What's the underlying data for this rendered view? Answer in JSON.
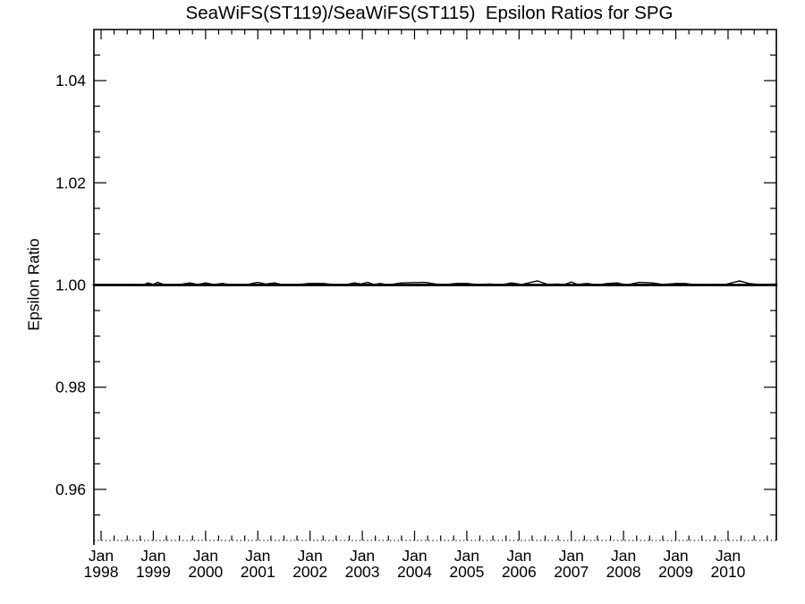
{
  "header": {
    "title": "SeaWiFS(ST119)/SeaWiFS(ST115)  Epsilon Ratios for SPG"
  },
  "chart_data": {
    "type": "line",
    "title": "SeaWiFS(ST119)/SeaWiFS(ST115)  Epsilon Ratios for SPG",
    "xlabel": "",
    "ylabel": "Epsilon Ratio",
    "xlim": [
      1997.863,
      2010.925
    ],
    "ylim": [
      0.95,
      1.05
    ],
    "grid": false,
    "legend": null,
    "line_color": "#000000",
    "background_color": "#ffffff",
    "x_minor_step_years": 0.25,
    "y_minor_step": 0.005,
    "xticks": [
      {
        "x": 1998,
        "line1": "Jan",
        "line2": "1998"
      },
      {
        "x": 1999,
        "line1": "Jan",
        "line2": "1999"
      },
      {
        "x": 2000,
        "line1": "Jan",
        "line2": "2000"
      },
      {
        "x": 2001,
        "line1": "Jan",
        "line2": "2001"
      },
      {
        "x": 2002,
        "line1": "Jan",
        "line2": "2002"
      },
      {
        "x": 2003,
        "line1": "Jan",
        "line2": "2003"
      },
      {
        "x": 2004,
        "line1": "Jan",
        "line2": "2004"
      },
      {
        "x": 2005,
        "line1": "Jan",
        "line2": "2005"
      },
      {
        "x": 2006,
        "line1": "Jan",
        "line2": "2006"
      },
      {
        "x": 2007,
        "line1": "Jan",
        "line2": "2007"
      },
      {
        "x": 2008,
        "line1": "Jan",
        "line2": "2008"
      },
      {
        "x": 2009,
        "line1": "Jan",
        "line2": "2009"
      },
      {
        "x": 2010,
        "line1": "Jan",
        "line2": "2010"
      }
    ],
    "yticks": [
      {
        "y": 0.96,
        "label": "0.96"
      },
      {
        "y": 0.98,
        "label": "0.98"
      },
      {
        "y": 1.0,
        "label": "1.00"
      },
      {
        "y": 1.02,
        "label": "1.02"
      },
      {
        "y": 1.04,
        "label": "1.04"
      }
    ],
    "series": [
      {
        "name": "epsilon-ratio-baseline",
        "color": "#000000",
        "stroke_width": 2.8,
        "points": [
          [
            1997.863,
            1.0
          ],
          [
            2010.925,
            1.0
          ]
        ]
      },
      {
        "name": "epsilon-ratio-trace",
        "color": "#000000",
        "stroke_width": 1.4,
        "points": [
          [
            1997.87,
            1.0
          ],
          [
            1998.2,
            1.0
          ],
          [
            1998.55,
            1.0001
          ],
          [
            1998.8,
            1.0
          ],
          [
            1998.9,
            1.0004
          ],
          [
            1999.0,
            1.0001
          ],
          [
            1999.08,
            1.0005
          ],
          [
            1999.2,
            1.0001
          ],
          [
            1999.45,
            1.0
          ],
          [
            1999.7,
            1.0004
          ],
          [
            1999.85,
            1.0001
          ],
          [
            2000.0,
            1.0004
          ],
          [
            2000.15,
            1.0001
          ],
          [
            2000.33,
            1.0003
          ],
          [
            2000.5,
            1.0
          ],
          [
            2000.8,
            1.0001
          ],
          [
            2001.0,
            1.0005
          ],
          [
            2001.15,
            1.0002
          ],
          [
            2001.32,
            1.0004
          ],
          [
            2001.5,
            1.0
          ],
          [
            2001.78,
            1.0001
          ],
          [
            2001.98,
            1.0003
          ],
          [
            2002.25,
            1.0003
          ],
          [
            2002.45,
            1.0001
          ],
          [
            2002.65,
            1.0
          ],
          [
            2002.85,
            1.0004
          ],
          [
            2002.98,
            1.0002
          ],
          [
            2003.1,
            1.0005
          ],
          [
            2003.22,
            1.0001
          ],
          [
            2003.35,
            1.0003
          ],
          [
            2003.5,
            1.0
          ],
          [
            2003.75,
            1.0004
          ],
          [
            2004.2,
            1.0005
          ],
          [
            2004.4,
            1.0002
          ],
          [
            2004.6,
            1.0001
          ],
          [
            2004.8,
            1.0003
          ],
          [
            2005.0,
            1.0003
          ],
          [
            2005.2,
            1.0001
          ],
          [
            2005.45,
            1.0002
          ],
          [
            2005.65,
            1.0
          ],
          [
            2005.85,
            1.0004
          ],
          [
            2006.05,
            1.0001
          ],
          [
            2006.35,
            1.0008
          ],
          [
            2006.55,
            1.0001
          ],
          [
            2006.72,
            1.0002
          ],
          [
            2006.88,
            1.0001
          ],
          [
            2007.0,
            1.0006
          ],
          [
            2007.12,
            1.0001
          ],
          [
            2007.3,
            1.0003
          ],
          [
            2007.5,
            1.0
          ],
          [
            2007.7,
            1.0003
          ],
          [
            2007.88,
            1.0004
          ],
          [
            2008.05,
            1.0
          ],
          [
            2008.3,
            1.0005
          ],
          [
            2008.55,
            1.0004
          ],
          [
            2008.75,
            1.0001
          ],
          [
            2009.0,
            1.0003
          ],
          [
            2009.18,
            1.0003
          ],
          [
            2009.4,
            1.0
          ],
          [
            2009.7,
            1.0001
          ],
          [
            2009.95,
            1.0001
          ],
          [
            2010.22,
            1.0008
          ],
          [
            2010.4,
            1.0003
          ],
          [
            2010.6,
            1.0001
          ],
          [
            2010.92,
            1.0002
          ]
        ]
      }
    ]
  }
}
